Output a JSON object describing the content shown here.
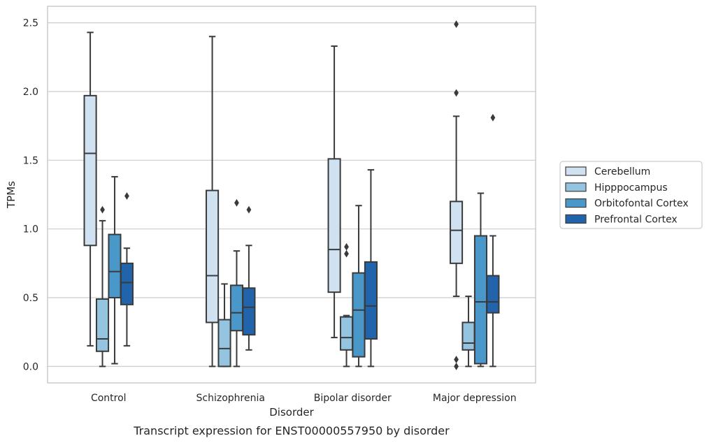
{
  "caption": "Transcript expression for ENST00000557950 by disorder",
  "chart_data": {
    "type": "box",
    "title": "",
    "xlabel": "Disorder",
    "ylabel": "TPMs",
    "ylim": [
      -0.12,
      2.62
    ],
    "yticks": [
      "0.0",
      "0.5",
      "1.0",
      "1.5",
      "2.0",
      "2.5"
    ],
    "grid": "horizontal",
    "legend_position": "right",
    "categories": [
      "Control",
      "Schizophrenia",
      "Bipolar disorder",
      "Major depression"
    ],
    "series": [
      {
        "name": "Cerebellum",
        "color": "#d0e1f2",
        "boxes": [
          {
            "whisker_low": 0.15,
            "q1": 0.88,
            "median": 1.55,
            "q3": 1.97,
            "whisker_high": 2.43,
            "outliers": []
          },
          {
            "whisker_low": 0.0,
            "q1": 0.32,
            "median": 0.66,
            "q3": 1.28,
            "whisker_high": 2.4,
            "outliers": []
          },
          {
            "whisker_low": 0.21,
            "q1": 0.54,
            "median": 0.85,
            "q3": 1.51,
            "whisker_high": 2.33,
            "outliers": []
          },
          {
            "whisker_low": 0.51,
            "q1": 0.75,
            "median": 0.99,
            "q3": 1.2,
            "whisker_high": 1.82,
            "outliers": [
              0.0,
              0.05,
              1.99,
              2.49
            ]
          }
        ]
      },
      {
        "name": "Hipppocampus",
        "color": "#94c4df",
        "boxes": [
          {
            "whisker_low": 0.0,
            "q1": 0.11,
            "median": 0.2,
            "q3": 0.49,
            "whisker_high": 1.06,
            "outliers": [
              1.14
            ]
          },
          {
            "whisker_low": 0.0,
            "q1": 0.0,
            "median": 0.13,
            "q3": 0.34,
            "whisker_high": 0.6,
            "outliers": []
          },
          {
            "whisker_low": 0.0,
            "q1": 0.12,
            "median": 0.21,
            "q3": 0.36,
            "whisker_high": 0.37,
            "outliers": [
              0.82,
              0.87
            ]
          },
          {
            "whisker_low": 0.0,
            "q1": 0.12,
            "median": 0.17,
            "q3": 0.32,
            "whisker_high": 0.51,
            "outliers": []
          }
        ]
      },
      {
        "name": "Orbitofontal Cortex",
        "color": "#4a98c9",
        "boxes": [
          {
            "whisker_low": 0.02,
            "q1": 0.5,
            "median": 0.69,
            "q3": 0.96,
            "whisker_high": 1.38,
            "outliers": []
          },
          {
            "whisker_low": 0.0,
            "q1": 0.26,
            "median": 0.39,
            "q3": 0.59,
            "whisker_high": 0.84,
            "outliers": [
              1.19
            ]
          },
          {
            "whisker_low": 0.0,
            "q1": 0.07,
            "median": 0.41,
            "q3": 0.68,
            "whisker_high": 1.17,
            "outliers": []
          },
          {
            "whisker_low": 0.0,
            "q1": 0.02,
            "median": 0.47,
            "q3": 0.95,
            "whisker_high": 1.26,
            "outliers": []
          }
        ]
      },
      {
        "name": "Prefrontal Cortex",
        "color": "#2164ab",
        "boxes": [
          {
            "whisker_low": 0.15,
            "q1": 0.45,
            "median": 0.61,
            "q3": 0.75,
            "whisker_high": 0.86,
            "outliers": [
              1.24
            ]
          },
          {
            "whisker_low": 0.12,
            "q1": 0.23,
            "median": 0.43,
            "q3": 0.57,
            "whisker_high": 0.88,
            "outliers": [
              1.14
            ]
          },
          {
            "whisker_low": 0.0,
            "q1": 0.2,
            "median": 0.44,
            "q3": 0.76,
            "whisker_high": 1.43,
            "outliers": []
          },
          {
            "whisker_low": 0.0,
            "q1": 0.39,
            "median": 0.47,
            "q3": 0.66,
            "whisker_high": 0.95,
            "outliers": [
              1.81
            ]
          }
        ]
      }
    ]
  }
}
